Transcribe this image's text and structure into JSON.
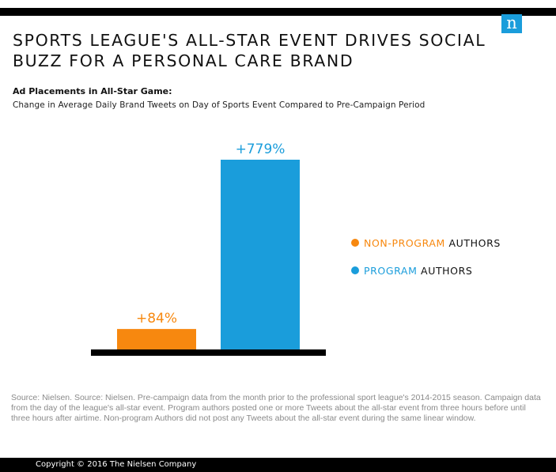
{
  "header": {
    "title": "SPORTS LEAGUE'S ALL-STAR EVENT DRIVES SOCIAL BUZZ FOR A PERSONAL CARE BRAND",
    "logo_text": "n",
    "logo_color": "#1a9ddb"
  },
  "chart_data": {
    "type": "bar",
    "subtitle": "Ad Placements in All-Star Game:",
    "description": "Change in Average Daily Brand Tweets on Day of Sports Event Compared to Pre-Campaign Period",
    "categories": [
      "NON-PROGRAM AUTHORS",
      "PROGRAM AUTHORS"
    ],
    "values": [
      84,
      779
    ],
    "value_labels": [
      "+84%",
      "+779%"
    ],
    "unit": "%",
    "colors": [
      "#f7880f",
      "#1a9ddb"
    ],
    "ylim": [
      0,
      779
    ],
    "grid": false,
    "legend_position": "right"
  },
  "legend": [
    {
      "highlight": "NON-PROGRAM",
      "suffix": " AUTHORS",
      "color": "#f7880f"
    },
    {
      "highlight": "PROGRAM",
      "suffix": " AUTHORS",
      "color": "#1a9ddb"
    }
  ],
  "source": "Source: Nielsen. Source: Nielsen. Pre-campaign data from the month prior to the professional sport league's 2014-2015 season. Campaign data from the day of the league's all-star event. Program authors posted one or more Tweets about the all-star event from three hours before until three hours after airtime. Non-program Authors did not post any Tweets about the all-star event during the same linear window.",
  "footer": {
    "copyright": "Copyright © 2016 The Nielsen Company"
  }
}
